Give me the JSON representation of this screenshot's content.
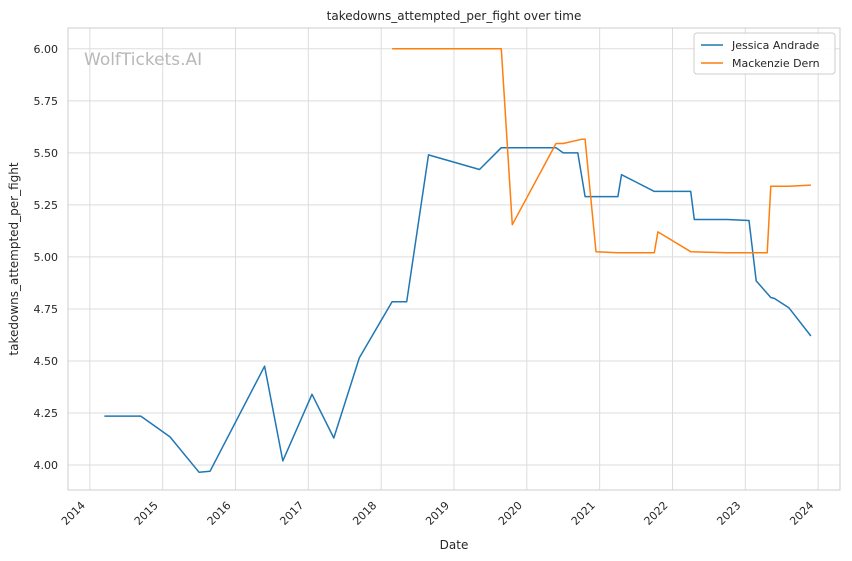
{
  "chart_data": {
    "type": "line",
    "title": "takedowns_attempted_per_fight over time",
    "xlabel": "Date",
    "ylabel": "takedowns_attempted_per_fight",
    "watermark": "WolfTickets.AI",
    "xlim": [
      2013.7,
      2024.3
    ],
    "ylim": [
      3.88,
      6.1
    ],
    "x_ticks": [
      2014,
      2015,
      2016,
      2017,
      2018,
      2019,
      2020,
      2021,
      2022,
      2023,
      2024
    ],
    "x_tick_labels": [
      "2014",
      "2015",
      "2016",
      "2017",
      "2018",
      "2019",
      "2020",
      "2021",
      "2022",
      "2023",
      "2024"
    ],
    "y_ticks": [
      4.0,
      4.25,
      4.5,
      4.75,
      5.0,
      5.25,
      5.5,
      5.75,
      6.0
    ],
    "y_tick_labels": [
      "4.00",
      "4.25",
      "4.50",
      "4.75",
      "5.00",
      "5.25",
      "5.50",
      "5.75",
      "6.00"
    ],
    "grid": true,
    "legend_position": "top-right",
    "series": [
      {
        "name": "Jessica Andrade",
        "color": "#1f77b4",
        "points": [
          [
            2014.2,
            4.235
          ],
          [
            2014.7,
            4.235
          ],
          [
            2015.1,
            4.135
          ],
          [
            2015.5,
            3.965
          ],
          [
            2015.65,
            3.97
          ],
          [
            2016.4,
            4.475
          ],
          [
            2016.65,
            4.02
          ],
          [
            2017.05,
            4.34
          ],
          [
            2017.35,
            4.13
          ],
          [
            2017.7,
            4.515
          ],
          [
            2018.15,
            4.785
          ],
          [
            2018.35,
            4.785
          ],
          [
            2018.65,
            5.49
          ],
          [
            2019.35,
            5.42
          ],
          [
            2019.65,
            5.525
          ],
          [
            2020.4,
            5.525
          ],
          [
            2020.5,
            5.5
          ],
          [
            2020.7,
            5.5
          ],
          [
            2020.8,
            5.29
          ],
          [
            2021.25,
            5.29
          ],
          [
            2021.3,
            5.395
          ],
          [
            2021.75,
            5.315
          ],
          [
            2022.25,
            5.315
          ],
          [
            2022.3,
            5.18
          ],
          [
            2022.75,
            5.18
          ],
          [
            2023.05,
            5.175
          ],
          [
            2023.15,
            4.885
          ],
          [
            2023.35,
            4.805
          ],
          [
            2023.4,
            4.8
          ],
          [
            2023.6,
            4.755
          ],
          [
            2023.9,
            4.62
          ]
        ]
      },
      {
        "name": "Mackenzie Dern",
        "color": "#ff7f0e",
        "points": [
          [
            2018.15,
            6.0
          ],
          [
            2019.65,
            6.0
          ],
          [
            2019.8,
            5.155
          ],
          [
            2020.4,
            5.545
          ],
          [
            2020.5,
            5.545
          ],
          [
            2020.75,
            5.565
          ],
          [
            2020.8,
            5.565
          ],
          [
            2020.95,
            5.025
          ],
          [
            2021.25,
            5.02
          ],
          [
            2021.75,
            5.02
          ],
          [
            2021.8,
            5.12
          ],
          [
            2022.25,
            5.025
          ],
          [
            2022.75,
            5.02
          ],
          [
            2023.3,
            5.02
          ],
          [
            2023.35,
            5.34
          ],
          [
            2023.6,
            5.34
          ],
          [
            2023.9,
            5.345
          ]
        ]
      }
    ]
  }
}
